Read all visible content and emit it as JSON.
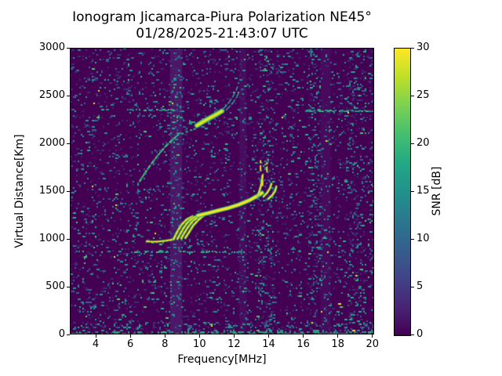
{
  "figure": {
    "title_line1": "Ionogram Jicamarca-Piura Polarization NE45°",
    "title_line2": "01/28/2025-21:43:07 UTC",
    "background": "#ffffff"
  },
  "chart_data": {
    "type": "heatmap",
    "title": "Ionogram Jicamarca-Piura Polarization NE45°",
    "subtitle": "01/28/2025-21:43:07 UTC",
    "xlabel": "Frequency[MHz]",
    "ylabel": "Virtual Distance[Km]",
    "xlim": [
      2.5,
      20.1
    ],
    "ylim": [
      0,
      3000
    ],
    "xticks": [
      4,
      6,
      8,
      10,
      12,
      14,
      16,
      18,
      20
    ],
    "yticks": [
      0,
      500,
      1000,
      1500,
      2000,
      2500,
      3000
    ],
    "grid": false,
    "legend": false,
    "background_color": "#440154",
    "colorbar": {
      "label": "SNR [dB]",
      "min": 0,
      "max": 30,
      "ticks": [
        0,
        5,
        10,
        15,
        20,
        25,
        30
      ],
      "colormap": "viridis",
      "stops": [
        "#440154",
        "#482475",
        "#414487",
        "#355f8d",
        "#2a788e",
        "#21918c",
        "#22a884",
        "#44bf70",
        "#7ad151",
        "#bddf26",
        "#fde725"
      ]
    },
    "noise": {
      "base_density": 0.085,
      "palette": [
        [
          "#3b2f72",
          0.42
        ],
        [
          "#33638d",
          0.66
        ],
        [
          "#21918c",
          0.88
        ],
        [
          "#27ad81",
          0.965
        ],
        [
          "#52c569",
          0.995
        ],
        [
          "#e8e419",
          1.0
        ]
      ]
    },
    "interference": {
      "wash_bands": [
        {
          "from": 8.3,
          "to": 9.0,
          "color": "rgba(95,75,150,0.30)"
        },
        {
          "from": 12.3,
          "to": 12.72,
          "color": "rgba(95,75,150,0.16)"
        },
        {
          "from": 17.0,
          "to": 17.6,
          "color": "rgba(95,75,150,0.13)"
        }
      ],
      "vertical_noise_bands": [
        {
          "from": 8.35,
          "to": 8.95,
          "boost": 0.1
        },
        {
          "from": 12.3,
          "to": 12.7,
          "boost": 0.04
        },
        {
          "from": 13.35,
          "to": 14.25,
          "boost": 0.12
        },
        {
          "from": 16.25,
          "to": 17.1,
          "boost": 0.1
        },
        {
          "from": 18.55,
          "to": 19.6,
          "boost": 0.08
        },
        {
          "from": 19.6,
          "to": 20.1,
          "boost": 0.04
        }
      ],
      "horizontal_dashed_segments": [
        {
          "km": 872,
          "from": 2.6,
          "to": 6.8,
          "density": 0.15
        },
        {
          "km": 872,
          "from": 6.8,
          "to": 12.6,
          "density": 0.5
        },
        {
          "km": 872,
          "from": 12.6,
          "to": 16.6,
          "density": 0.12
        },
        {
          "km": 2350,
          "from": 5.8,
          "to": 8.6,
          "density": 0.45
        },
        {
          "km": 2345,
          "from": 16.1,
          "to": 20.05,
          "density": 0.6
        }
      ]
    },
    "traces": {
      "f_layer_tail": [
        [
          6.95,
          975
        ],
        [
          7.3,
          970
        ],
        [
          7.65,
          973
        ],
        [
          8.0,
          980
        ],
        [
          8.3,
          988
        ],
        [
          8.5,
          996
        ]
      ],
      "f_layer_cusp_branches": [
        [
          [
            8.5,
            996
          ],
          [
            8.62,
            1042
          ],
          [
            8.78,
            1096
          ],
          [
            8.98,
            1152
          ],
          [
            9.25,
            1202
          ],
          [
            9.6,
            1236
          ]
        ],
        [
          [
            8.72,
            1000
          ],
          [
            8.86,
            1046
          ],
          [
            9.05,
            1106
          ],
          [
            9.28,
            1166
          ],
          [
            9.58,
            1216
          ],
          [
            9.9,
            1244
          ]
        ],
        [
          [
            8.95,
            1006
          ],
          [
            9.1,
            1056
          ],
          [
            9.32,
            1120
          ],
          [
            9.6,
            1186
          ],
          [
            9.92,
            1232
          ],
          [
            10.18,
            1252
          ]
        ],
        [
          [
            9.18,
            1010
          ],
          [
            9.38,
            1066
          ],
          [
            9.62,
            1136
          ],
          [
            9.95,
            1202
          ],
          [
            10.28,
            1250
          ]
        ]
      ],
      "f_layer_main": [
        [
          9.9,
          1244
        ],
        [
          10.5,
          1270
        ],
        [
          11.1,
          1298
        ],
        [
          11.7,
          1325
        ],
        [
          12.3,
          1360
        ],
        [
          12.9,
          1405
        ],
        [
          13.3,
          1445
        ],
        [
          13.62,
          1482
        ]
      ],
      "f_layer_hook_branches": [
        [
          [
            13.38,
            1455
          ],
          [
            13.5,
            1520
          ],
          [
            13.6,
            1592
          ],
          [
            13.64,
            1660
          ]
        ],
        [
          [
            13.7,
            1442
          ],
          [
            13.92,
            1484
          ],
          [
            14.08,
            1532
          ],
          [
            14.16,
            1578
          ]
        ],
        [
          [
            13.98,
            1420
          ],
          [
            14.22,
            1460
          ],
          [
            14.38,
            1502
          ],
          [
            14.44,
            1548
          ]
        ]
      ],
      "f_layer_hook_dashes": [
        [
          [
            13.53,
            1715
          ],
          [
            13.53,
            1818
          ]
        ],
        [
          [
            13.9,
            1702
          ],
          [
            13.9,
            1798
          ]
        ],
        [
          [
            13.65,
            1560
          ],
          [
            13.66,
            1672
          ]
        ]
      ],
      "second_hop_lower": [
        [
          6.55,
          1605
        ],
        [
          6.85,
          1692
        ],
        [
          7.2,
          1782
        ],
        [
          7.6,
          1876
        ],
        [
          8.0,
          1962
        ],
        [
          8.4,
          2032
        ],
        [
          8.78,
          2092
        ]
      ],
      "second_hop_gap_dots": [
        [
          8.95,
          2110
        ],
        [
          9.2,
          2128
        ],
        [
          9.45,
          2146
        ],
        [
          9.65,
          2158
        ]
      ],
      "second_hop_bright": [
        [
          9.85,
          2186
        ],
        [
          10.2,
          2226
        ],
        [
          10.6,
          2266
        ],
        [
          11.0,
          2306
        ],
        [
          11.3,
          2338
        ]
      ],
      "second_hop_upper_arcs": [
        [
          [
            11.35,
            2356
          ],
          [
            11.7,
            2426
          ],
          [
            11.95,
            2496
          ],
          [
            12.12,
            2556
          ],
          [
            12.2,
            2592
          ]
        ],
        [
          [
            11.55,
            2350
          ],
          [
            11.9,
            2416
          ],
          [
            12.15,
            2482
          ],
          [
            12.3,
            2542
          ]
        ]
      ],
      "top_edge_mark": [
        [
          16.45,
          2990
        ],
        [
          16.45,
          2910
        ]
      ]
    }
  }
}
